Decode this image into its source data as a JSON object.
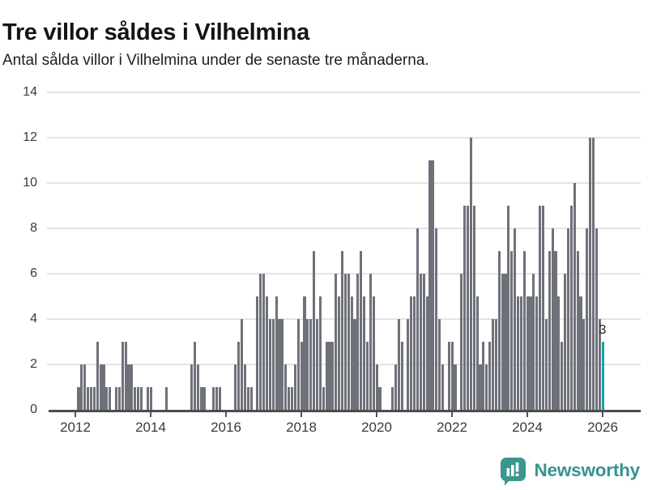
{
  "header": {
    "title": "Tre villor såldes i Vilhelmina",
    "subtitle": "Antal sålda villor i Vilhelmina under de senaste tre månaderna."
  },
  "chart_data": {
    "type": "bar",
    "title": "Tre villor såldes i Vilhelmina",
    "subtitle": "Antal sålda villor i Vilhelmina under de senaste tre månaderna.",
    "x_start": "2012-01",
    "x_end": "2026-01",
    "ylim": [
      0,
      14
    ],
    "yticks": [
      "0",
      "2",
      "4",
      "6",
      "8",
      "10",
      "12",
      "14"
    ],
    "xticks": [
      "2012",
      "2014",
      "2016",
      "2018",
      "2020",
      "2022",
      "2024",
      "2026"
    ],
    "grid": "horizontal",
    "legend": "none",
    "bar_color": "#6f717a",
    "highlight_color": "#16a4a9",
    "series": [
      {
        "year": 2012,
        "values": [
          0,
          1,
          2,
          2,
          1,
          1,
          1,
          3,
          2,
          2,
          1,
          1
        ]
      },
      {
        "year": 2013,
        "values": [
          0,
          1,
          1,
          3,
          3,
          2,
          2,
          1,
          1,
          1,
          0,
          1
        ]
      },
      {
        "year": 2014,
        "values": [
          1,
          0,
          0,
          0,
          0,
          1,
          0,
          0,
          0,
          0,
          0,
          0
        ]
      },
      {
        "year": 2015,
        "values": [
          0,
          2,
          3,
          2,
          1,
          1,
          0,
          0,
          1,
          1,
          1,
          0
        ]
      },
      {
        "year": 2016,
        "values": [
          0,
          0,
          0,
          2,
          3,
          4,
          2,
          1,
          1,
          0,
          5,
          6
        ]
      },
      {
        "year": 2017,
        "values": [
          6,
          5,
          4,
          4,
          5,
          4,
          4,
          2,
          1,
          1,
          2,
          4
        ]
      },
      {
        "year": 2018,
        "values": [
          3,
          5,
          4,
          4,
          7,
          4,
          5,
          1,
          3,
          3,
          3,
          6
        ]
      },
      {
        "year": 2019,
        "values": [
          5,
          7,
          6,
          6,
          5,
          4,
          6,
          7,
          5,
          3,
          6,
          5
        ]
      },
      {
        "year": 2020,
        "values": [
          2,
          1,
          0,
          0,
          0,
          1,
          2,
          4,
          3,
          0,
          4,
          5
        ]
      },
      {
        "year": 2021,
        "values": [
          5,
          8,
          6,
          6,
          5,
          11,
          11,
          8,
          4,
          2,
          0,
          3
        ]
      },
      {
        "year": 2022,
        "values": [
          3,
          2,
          0,
          6,
          9,
          9,
          12,
          9,
          5,
          2,
          3,
          2
        ]
      },
      {
        "year": 2023,
        "values": [
          3,
          4,
          4,
          7,
          6,
          6,
          9,
          7,
          8,
          5,
          5,
          7
        ]
      },
      {
        "year": 2024,
        "values": [
          5,
          5,
          6,
          5,
          9,
          9,
          4,
          7,
          8,
          7,
          5,
          3
        ]
      },
      {
        "year": 2025,
        "values": [
          6,
          8,
          9,
          10,
          7,
          5,
          4,
          8,
          12,
          12,
          8,
          4
        ]
      },
      {
        "year": 2026,
        "values": [
          3
        ]
      }
    ],
    "highlight_last_bar": true,
    "last_bar_label": "3",
    "last_bar_value": 3
  },
  "footer": {
    "brand": "Newsworthy",
    "logo_icon": "bar-chart-exclamation-speech-bubble",
    "brand_color": "#35948c"
  },
  "colors": {
    "background": "#ffffff",
    "bar": "#6f717a",
    "highlight": "#16a4a9",
    "gridline": "#e4e4e4",
    "axis": "#4c4d53",
    "tick_text": "#3a3a3a",
    "title_text": "#141414"
  }
}
